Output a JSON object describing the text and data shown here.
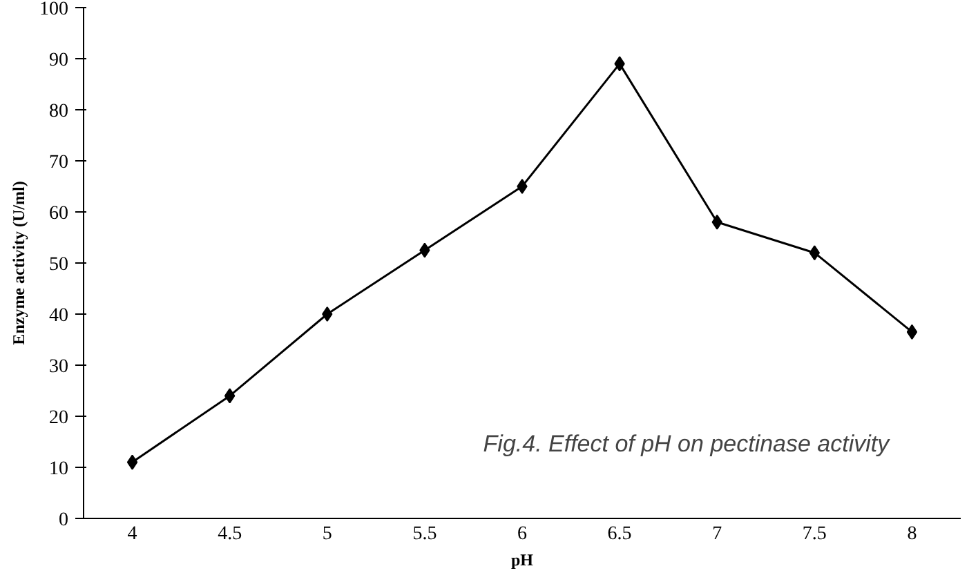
{
  "chart_data": {
    "type": "line",
    "xlabel": "pH",
    "ylabel": "Enzyme activity (U/ml)",
    "categories": [
      "4",
      "4.5",
      "5",
      "5.5",
      "6",
      "6.5",
      "7",
      "7.5",
      "8"
    ],
    "series": [
      {
        "color": "#000000",
        "values": [
          11,
          24,
          40,
          52.5,
          65,
          89,
          58,
          52,
          36.5
        ]
      }
    ],
    "ylim": [
      0,
      100
    ],
    "yticks": [
      0,
      10,
      20,
      30,
      40,
      50,
      60,
      70,
      80,
      90,
      100
    ],
    "marker": "diamond",
    "line_style": "solid",
    "grid": false,
    "annotations": [
      "Fig.4. Effect of pH on pectinase activity"
    ]
  }
}
